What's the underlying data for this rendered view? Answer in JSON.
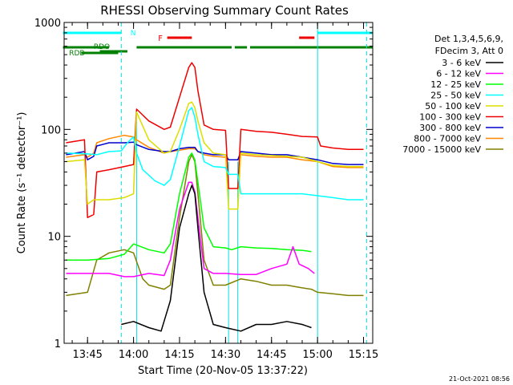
{
  "chart_data": {
    "type": "line",
    "title": "RHESSI Observing Summary Count Rates",
    "xlabel": "Start Time (20-Nov-05 13:37:22)",
    "ylabel": "Count Rate (s⁻¹ detector⁻¹)",
    "footer": "21-Oct-2021 08:56",
    "y_scale": "log",
    "ylim": [
      1,
      1000
    ],
    "xlim": [
      "13:37:22",
      "15:18:00"
    ],
    "xticks": [
      "13:45",
      "14:00",
      "14:15",
      "14:30",
      "14:45",
      "15:00",
      "15:15"
    ],
    "yticks": [
      "1",
      "10",
      "100",
      "1000"
    ],
    "legend": {
      "placement": "right",
      "header": [
        "Det 1,3,4,5,6,9,",
        "FDecim 3, Att 0"
      ]
    },
    "flag_labels": {
      "night": "N",
      "flare": "F",
      "rdo": "RDO",
      "rdb": "RDB"
    },
    "flags": {
      "night": [
        [
          "13:37",
          "13:56"
        ],
        [
          "15:00",
          "15:18"
        ]
      ],
      "flare": [
        [
          "14:11",
          "14:19"
        ],
        [
          "14:54",
          "14:59"
        ]
      ],
      "saa_green": [
        [
          "13:37",
          "13:52"
        ],
        [
          "14:01",
          "14:32"
        ],
        [
          "14:33",
          "14:37"
        ],
        [
          "14:38",
          "15:18"
        ]
      ],
      "rdo": [
        [
          "13:49",
          "13:58"
        ]
      ],
      "rdb": [
        [
          "13:43",
          "13:55"
        ]
      ]
    },
    "colors": {
      "night": "#00ffff",
      "flare": "#ee0000",
      "flag_green": "#008000",
      "vertical_lines": "#00e0e0",
      "axes": "#000000"
    },
    "series": [
      {
        "name": "3 - 6 keV",
        "color": "#000000",
        "x": [
          "13:56",
          "14:00",
          "14:05",
          "14:09",
          "14:12",
          "14:15",
          "14:18",
          "14:19",
          "14:20",
          "14:21",
          "14:23",
          "14:26",
          "14:30",
          "14:35",
          "14:40",
          "14:45",
          "14:50",
          "14:55",
          "14:58"
        ],
        "values": [
          1.5,
          1.6,
          1.4,
          1.3,
          2.5,
          12,
          25,
          30,
          25,
          12,
          3,
          1.5,
          1.4,
          1.3,
          1.5,
          1.5,
          1.6,
          1.5,
          1.4
        ]
      },
      {
        "name": "6 - 12 keV",
        "color": "#ff00ff",
        "x": [
          "13:38",
          "13:45",
          "13:52",
          "13:57",
          "14:00",
          "14:05",
          "14:10",
          "14:12",
          "14:15",
          "14:18",
          "14:19",
          "14:20",
          "14:21",
          "14:23",
          "14:26",
          "14:30",
          "14:35",
          "14:40",
          "14:45",
          "14:50",
          "14:52",
          "14:54",
          "14:57",
          "14:59"
        ],
        "values": [
          4.5,
          4.5,
          4.5,
          4.2,
          4.2,
          4.5,
          4.3,
          6,
          18,
          32,
          32,
          26,
          15,
          5,
          4.5,
          4.5,
          4.4,
          4.4,
          5,
          5.5,
          8,
          5.5,
          5,
          4.5
        ]
      },
      {
        "name": "12 - 25 keV",
        "color": "#00ff00",
        "x": [
          "13:38",
          "13:45",
          "13:52",
          "13:57",
          "14:00",
          "14:05",
          "14:10",
          "14:12",
          "14:15",
          "14:18",
          "14:19",
          "14:20",
          "14:21",
          "14:23",
          "14:26",
          "14:30",
          "14:32",
          "14:35",
          "14:40",
          "14:45",
          "14:50",
          "14:55",
          "14:58"
        ],
        "values": [
          6,
          6,
          6.2,
          6.8,
          8.5,
          7.5,
          7,
          8.5,
          25,
          55,
          60,
          52,
          32,
          12,
          8,
          7.8,
          7.5,
          8,
          7.8,
          7.7,
          7.5,
          7.4,
          7.2
        ]
      },
      {
        "name": "25 - 50 keV",
        "color": "#00ffff",
        "x": [
          "13:38",
          "13:45",
          "13:48",
          "13:50",
          "13:52",
          "13:56",
          "13:58",
          "14:00",
          "14:01",
          "14:03",
          "14:07",
          "14:10",
          "14:12",
          "14:15",
          "14:18",
          "14:19",
          "14:20",
          "14:21",
          "14:23",
          "14:26",
          "14:30",
          "14:31",
          "14:34",
          "14:35",
          "14:40",
          "14:45",
          "14:50",
          "14:55",
          "15:00",
          "15:05",
          "15:10",
          "15:15"
        ],
        "values": [
          60,
          59,
          58,
          60,
          62,
          63,
          75,
          85,
          60,
          42,
          33,
          30,
          34,
          70,
          150,
          160,
          130,
          90,
          50,
          45,
          44,
          38,
          38,
          25,
          25,
          25,
          25,
          25,
          24,
          23,
          22,
          22
        ]
      },
      {
        "name": "50 - 100 keV",
        "color": "#dddd00",
        "x": [
          "13:38",
          "13:44",
          "13:45",
          "13:47",
          "13:48",
          "13:52",
          "13:57",
          "14:00",
          "14:01",
          "14:05",
          "14:10",
          "14:12",
          "14:15",
          "14:18",
          "14:19",
          "14:20",
          "14:21",
          "14:23",
          "14:26",
          "14:30",
          "14:31",
          "14:32",
          "14:34",
          "14:35",
          "14:40",
          "14:45",
          "14:50",
          "14:55",
          "15:00",
          "15:05",
          "15:10",
          "15:15"
        ],
        "values": [
          50,
          52,
          20,
          22,
          22,
          22,
          23,
          25,
          145,
          80,
          60,
          62,
          100,
          175,
          180,
          160,
          120,
          75,
          60,
          58,
          18,
          18,
          18,
          60,
          58,
          57,
          56,
          55,
          50,
          46,
          45,
          45
        ]
      },
      {
        "name": "100 - 300 keV",
        "color": "#ee0000",
        "x": [
          "13:38",
          "13:44",
          "13:45",
          "13:47",
          "13:48",
          "13:52",
          "13:57",
          "14:00",
          "14:01",
          "14:05",
          "14:10",
          "14:12",
          "14:15",
          "14:18",
          "14:19",
          "14:20",
          "14:21",
          "14:23",
          "14:26",
          "14:30",
          "14:31",
          "14:32",
          "14:34",
          "14:35",
          "14:40",
          "14:45",
          "14:50",
          "14:55",
          "15:00",
          "15:01",
          "15:05",
          "15:10",
          "15:15"
        ],
        "values": [
          75,
          80,
          15,
          16,
          40,
          42,
          45,
          47,
          155,
          120,
          100,
          105,
          200,
          380,
          420,
          380,
          230,
          110,
          100,
          98,
          28,
          28,
          28,
          100,
          96,
          94,
          90,
          86,
          85,
          70,
          67,
          65,
          65
        ]
      },
      {
        "name": "300 - 800 keV",
        "color": "#0000cc",
        "x": [
          "13:38",
          "13:44",
          "13:45",
          "13:47",
          "13:48",
          "13:52",
          "13:57",
          "14:00",
          "14:01",
          "14:05",
          "14:10",
          "14:12",
          "14:15",
          "14:18",
          "14:20",
          "14:21",
          "14:23",
          "14:26",
          "14:30",
          "14:31",
          "14:34",
          "14:35",
          "14:40",
          "14:45",
          "14:50",
          "14:55",
          "15:00",
          "15:05",
          "15:10",
          "15:15"
        ],
        "values": [
          58,
          62,
          52,
          56,
          70,
          75,
          75,
          76,
          72,
          65,
          62,
          62,
          66,
          68,
          68,
          62,
          60,
          58,
          58,
          52,
          52,
          62,
          60,
          58,
          58,
          55,
          52,
          48,
          47,
          47
        ]
      },
      {
        "name": "800 - 7000 keV",
        "color": "#ff8800",
        "x": [
          "13:38",
          "13:44",
          "13:45",
          "13:47",
          "13:48",
          "13:52",
          "13:57",
          "14:00",
          "14:01",
          "14:05",
          "14:10",
          "14:12",
          "14:15",
          "14:18",
          "14:20",
          "14:21",
          "14:23",
          "14:26",
          "14:30",
          "14:31",
          "14:34",
          "14:35",
          "14:40",
          "14:45",
          "14:50",
          "14:55",
          "15:00",
          "15:05",
          "15:10",
          "15:15"
        ],
        "values": [
          55,
          58,
          55,
          60,
          75,
          82,
          88,
          85,
          80,
          68,
          60,
          62,
          64,
          66,
          66,
          62,
          58,
          56,
          55,
          52,
          52,
          58,
          56,
          55,
          55,
          52,
          50,
          45,
          44,
          44
        ]
      },
      {
        "name": "7000 - 15000 keV",
        "color": "#808000",
        "x": [
          "13:38",
          "13:45",
          "13:48",
          "13:52",
          "13:57",
          "14:00",
          "14:03",
          "14:05",
          "14:10",
          "14:12",
          "14:15",
          "14:18",
          "14:19",
          "14:20",
          "14:21",
          "14:23",
          "14:26",
          "14:30",
          "14:35",
          "14:40",
          "14:45",
          "14:50",
          "14:55",
          "14:58",
          "15:00",
          "15:05",
          "15:10",
          "15:15"
        ],
        "values": [
          2.8,
          3,
          6,
          7,
          7.5,
          7,
          4,
          3.5,
          3.2,
          3.5,
          15,
          50,
          58,
          50,
          25,
          6,
          3.5,
          3.5,
          4,
          3.8,
          3.5,
          3.5,
          3.3,
          3.2,
          3,
          2.9,
          2.8,
          2.8
        ]
      }
    ]
  }
}
